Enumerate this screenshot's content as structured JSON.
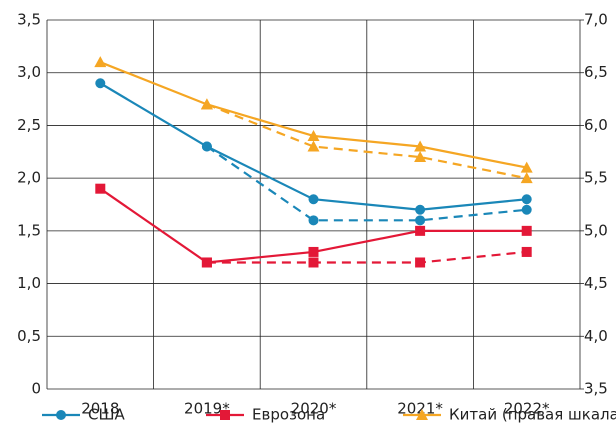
{
  "chart_data": {
    "type": "line",
    "categories": [
      "2018",
      "2019*",
      "2020*",
      "2021*",
      "2022*"
    ],
    "series": [
      {
        "name": "США",
        "color": "#1a87b8",
        "marker": "circle",
        "values": [
          2.9,
          2.3,
          1.8,
          1.7,
          1.8
        ],
        "dashed_values": [
          null,
          2.3,
          1.6,
          1.6,
          1.7
        ]
      },
      {
        "name": "Еврозона",
        "color": "#e31837",
        "marker": "square",
        "values": [
          1.9,
          1.2,
          1.3,
          1.5,
          1.5
        ],
        "dashed_values": [
          null,
          1.2,
          1.2,
          1.2,
          1.3
        ]
      },
      {
        "name": "Китай (правая шкала)",
        "color": "#f5a623",
        "marker": "triangle",
        "axis": "y2",
        "values": [
          6.6,
          6.2,
          5.9,
          5.8,
          5.6
        ],
        "dashed_values": [
          null,
          6.2,
          5.8,
          5.7,
          5.5
        ]
      }
    ],
    "ylim": [
      0,
      3.5
    ],
    "yticks": [
      0,
      {
        "value": 0.5,
        "label": "0,5"
      },
      {
        "value": 1.0,
        "label": "1,0"
      },
      {
        "value": 1.5,
        "label": "1,5"
      },
      {
        "value": 2.0,
        "label": "2,0"
      },
      {
        "value": 2.5,
        "label": "2,5"
      },
      {
        "value": 3.0,
        "label": "3,0"
      },
      {
        "value": 3.5,
        "label": "3,5"
      }
    ],
    "y2lim": [
      3.5,
      7.0
    ],
    "y2ticks": [
      {
        "value": 3.5,
        "label": "3,5"
      },
      {
        "value": 4.0,
        "label": "4,0"
      },
      {
        "value": 4.5,
        "label": "4,5"
      },
      {
        "value": 5.0,
        "label": "5,0"
      },
      {
        "value": 5.5,
        "label": "5,5"
      },
      {
        "value": 6.0,
        "label": "6,0"
      },
      {
        "value": 6.5,
        "label": "6,5"
      },
      {
        "value": 7.0,
        "label": "7,0"
      }
    ],
    "grid": true,
    "legend": "bottom"
  }
}
